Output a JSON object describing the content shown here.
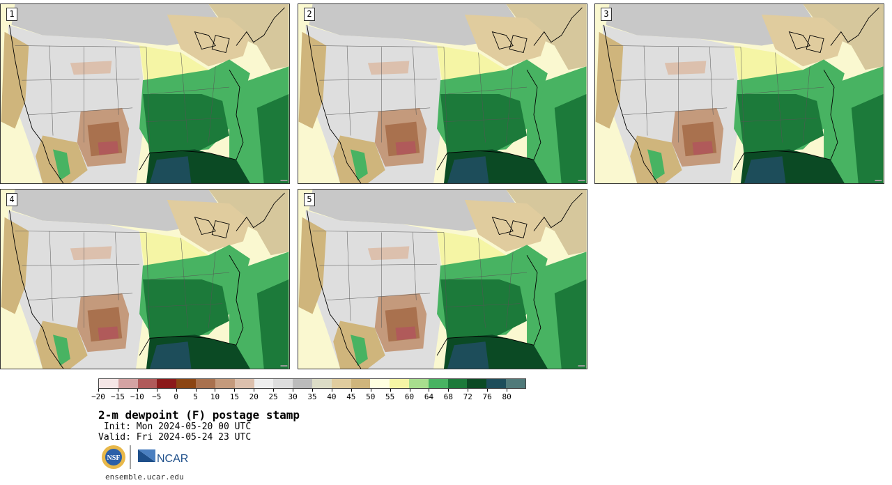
{
  "panels": [
    {
      "label": "1"
    },
    {
      "label": "2"
    },
    {
      "label": "3"
    },
    {
      "label": "4"
    },
    {
      "label": "5"
    }
  ],
  "colorbar": {
    "colors": [
      "#f5e6e6",
      "#d4a3a3",
      "#b05a5a",
      "#8b1a1a",
      "#8b4513",
      "#a9714e",
      "#c49a7c",
      "#dcc0ad",
      "#eeeeee",
      "#dddddd",
      "#bbbbbb",
      "#dcdcc6",
      "#e0cc9e",
      "#cfb57c",
      "#ffffe0",
      "#f5f5a5",
      "#a8de8e",
      "#48b362",
      "#1c7a3a",
      "#0b4a24",
      "#1d4d5a",
      "#507a7a"
    ],
    "tick_labels": [
      "−20",
      "−15",
      "−10",
      "−5",
      "0",
      "5",
      "10",
      "15",
      "20",
      "25",
      "30",
      "35",
      "40",
      "45",
      "50",
      "55",
      "60",
      "64",
      "68",
      "72",
      "76",
      "80"
    ]
  },
  "title": "2-m dewpoint (F) postage stamp",
  "init_line": " Init: Mon 2024-05-20 00 UTC",
  "valid_line": "Valid: Fri 2024-05-24 23 UTC",
  "logos": {
    "nsf": "NSF",
    "ncar": "NCAR"
  },
  "footer": "ensemble.ucar.edu"
}
